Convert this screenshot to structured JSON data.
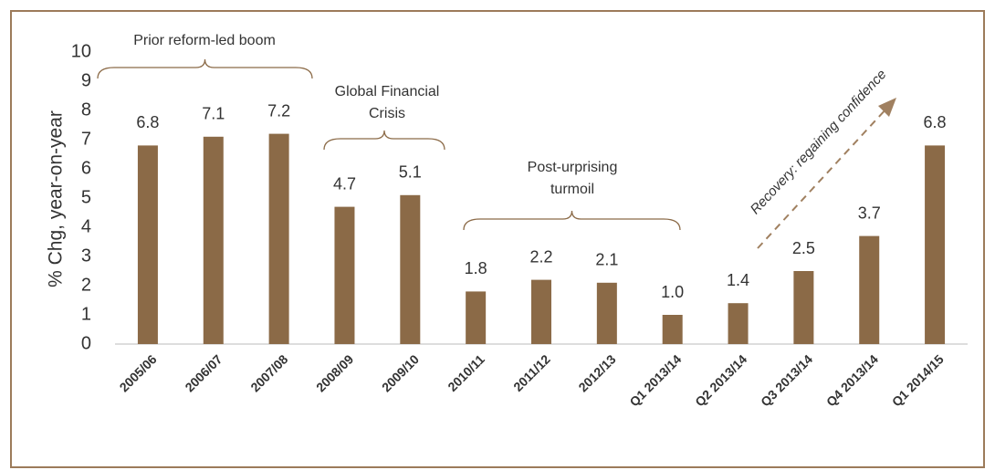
{
  "chart_data": {
    "type": "bar",
    "y_axis_label": "% Chg, year-on-year",
    "categories": [
      "2005/06",
      "2006/07",
      "2007/08",
      "2008/09",
      "2009/10",
      "2010/11",
      "2011/12",
      "2012/13",
      "Q1 2013/14",
      "Q2 2013/14",
      "Q3 2013/14",
      "Q4 2013/14",
      "Q1 2014/15"
    ],
    "values": [
      6.8,
      7.1,
      7.2,
      4.7,
      5.1,
      1.8,
      2.2,
      2.1,
      1.0,
      1.4,
      2.5,
      3.7,
      6.8
    ],
    "value_labels": [
      "6.8",
      "7.1",
      "7.2",
      "4.7",
      "5.1",
      "1.8",
      "2.2",
      "2.1",
      "1.0",
      "1.4",
      "2.5",
      "3.7",
      "6.8"
    ],
    "color": "#8b6a47",
    "ylim": [
      0,
      10
    ],
    "yticks": [
      0,
      1,
      2,
      3,
      4,
      5,
      6,
      7,
      8,
      9,
      10
    ],
    "annotations": [
      {
        "lines": [
          "Prior reform-led boom"
        ]
      },
      {
        "lines": [
          "Global Financial",
          "Crisis"
        ]
      },
      {
        "lines": [
          "Post-urprising",
          "turmoil"
        ]
      },
      {
        "lines": [
          "Recovery: regaining confidence"
        ]
      }
    ]
  }
}
